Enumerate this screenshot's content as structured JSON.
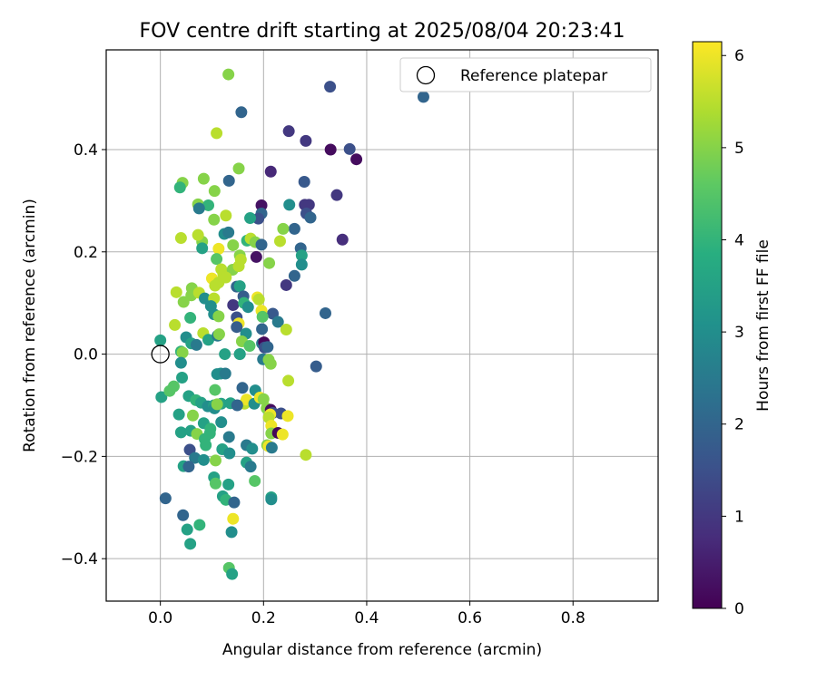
{
  "chart_data": {
    "type": "scatter",
    "title": "FOV centre drift starting at 2025/08/04 20:23:41",
    "xlabel": "Angular distance from reference (arcmin)",
    "ylabel": "Rotation from reference (arcmin)",
    "xlim": [
      -0.105,
      0.965
    ],
    "ylim": [
      -0.483,
      0.595
    ],
    "xticks": [
      0.0,
      0.2,
      0.4,
      0.6,
      0.8
    ],
    "xtick_labels": [
      "0.0",
      "0.2",
      "0.4",
      "0.6",
      "0.8"
    ],
    "yticks": [
      -0.4,
      -0.2,
      0.0,
      0.2,
      0.4
    ],
    "ytick_labels": [
      "−0.4",
      "−0.2",
      "0.0",
      "0.2",
      "0.4"
    ],
    "grid": true,
    "legend": {
      "placement": "top-right",
      "entries": [
        "Reference platepar"
      ]
    },
    "reference_point": {
      "x": 0.0,
      "y": 0.0,
      "name": "Reference platepar"
    },
    "colorbar": {
      "label": "Hours from first FF file",
      "range": [
        0,
        6.15
      ],
      "ticks": [
        0,
        1,
        2,
        3,
        4,
        5,
        6
      ],
      "tick_labels": [
        "0",
        "1",
        "2",
        "3",
        "4",
        "5",
        "6"
      ],
      "colormap": "viridis"
    },
    "points": [
      [
        0.132,
        0.547,
        5.0
      ],
      [
        0.157,
        0.473,
        2.0
      ],
      [
        0.329,
        0.523,
        1.5
      ],
      [
        0.51,
        0.503,
        2.0
      ],
      [
        0.249,
        0.436,
        1.0
      ],
      [
        0.282,
        0.417,
        1.0
      ],
      [
        0.33,
        0.4,
        0.2
      ],
      [
        0.367,
        0.401,
        1.5
      ],
      [
        0.38,
        0.381,
        0.2
      ],
      [
        0.109,
        0.432,
        5.5
      ],
      [
        0.214,
        0.357,
        0.7
      ],
      [
        0.152,
        0.363,
        5.0
      ],
      [
        0.279,
        0.337,
        1.7
      ],
      [
        0.342,
        0.311,
        1.0
      ],
      [
        0.353,
        0.224,
        0.8
      ],
      [
        0.084,
        0.343,
        5.0
      ],
      [
        0.043,
        0.335,
        5.0
      ],
      [
        0.038,
        0.326,
        4.0
      ],
      [
        0.105,
        0.319,
        5.0
      ],
      [
        0.133,
        0.339,
        2.0
      ],
      [
        0.196,
        0.291,
        0.3
      ],
      [
        0.073,
        0.293,
        5.0
      ],
      [
        0.093,
        0.291,
        4.0
      ],
      [
        0.075,
        0.285,
        2.5
      ],
      [
        0.25,
        0.292,
        3.0
      ],
      [
        0.28,
        0.292,
        1.0
      ],
      [
        0.288,
        0.292,
        1.0
      ],
      [
        0.196,
        0.275,
        2.0
      ],
      [
        0.19,
        0.265,
        1.5
      ],
      [
        0.174,
        0.266,
        3.5
      ],
      [
        0.127,
        0.271,
        5.5
      ],
      [
        0.104,
        0.263,
        5.0
      ],
      [
        0.283,
        0.275,
        1.5
      ],
      [
        0.291,
        0.267,
        2.0
      ],
      [
        0.26,
        0.245,
        2.0
      ],
      [
        0.238,
        0.245,
        5.0
      ],
      [
        0.081,
        0.22,
        5.0
      ],
      [
        0.073,
        0.233,
        5.5
      ],
      [
        0.04,
        0.227,
        5.5
      ],
      [
        0.124,
        0.235,
        3.0
      ],
      [
        0.132,
        0.238,
        2.5
      ],
      [
        0.168,
        0.222,
        4.0
      ],
      [
        0.175,
        0.226,
        5.5
      ],
      [
        0.184,
        0.219,
        5.0
      ],
      [
        0.196,
        0.214,
        2.0
      ],
      [
        0.232,
        0.221,
        5.5
      ],
      [
        0.272,
        0.207,
        2.0
      ],
      [
        0.274,
        0.193,
        3.5
      ],
      [
        0.081,
        0.207,
        3.5
      ],
      [
        0.113,
        0.206,
        6.0
      ],
      [
        0.141,
        0.213,
        5.0
      ],
      [
        0.154,
        0.193,
        5.0
      ],
      [
        0.156,
        0.185,
        5.5
      ],
      [
        0.186,
        0.19,
        0.3
      ],
      [
        0.211,
        0.178,
        5.0
      ],
      [
        0.274,
        0.175,
        3.0
      ],
      [
        0.109,
        0.186,
        4.5
      ],
      [
        0.118,
        0.166,
        5.5
      ],
      [
        0.122,
        0.156,
        5.5
      ],
      [
        0.14,
        0.165,
        5.0
      ],
      [
        0.152,
        0.172,
        5.5
      ],
      [
        0.1,
        0.148,
        6.0
      ],
      [
        0.113,
        0.14,
        5.5
      ],
      [
        0.127,
        0.15,
        5.5
      ],
      [
        0.106,
        0.134,
        5.5
      ],
      [
        0.061,
        0.129,
        5.0
      ],
      [
        0.031,
        0.121,
        5.5
      ],
      [
        0.06,
        0.115,
        5.0
      ],
      [
        0.045,
        0.102,
        5.0
      ],
      [
        0.075,
        0.12,
        5.5
      ],
      [
        0.086,
        0.109,
        3.0
      ],
      [
        0.104,
        0.109,
        5.5
      ],
      [
        0.098,
        0.094,
        3.0
      ],
      [
        0.104,
        0.078,
        3.0
      ],
      [
        0.113,
        0.074,
        5.0
      ],
      [
        0.148,
        0.132,
        2.0
      ],
      [
        0.154,
        0.133,
        3.5
      ],
      [
        0.161,
        0.113,
        1.8
      ],
      [
        0.141,
        0.096,
        1.0
      ],
      [
        0.162,
        0.1,
        4.0
      ],
      [
        0.17,
        0.092,
        3.0
      ],
      [
        0.188,
        0.111,
        6.0
      ],
      [
        0.191,
        0.107,
        5.5
      ],
      [
        0.218,
        0.079,
        1.7
      ],
      [
        0.228,
        0.063,
        2.5
      ],
      [
        0.244,
        0.135,
        1.0
      ],
      [
        0.26,
        0.153,
        2.0
      ],
      [
        0.32,
        0.08,
        2.0
      ],
      [
        0.058,
        0.071,
        4.0
      ],
      [
        0.028,
        0.057,
        5.5
      ],
      [
        0.148,
        0.072,
        1.5
      ],
      [
        0.152,
        0.06,
        6.0
      ],
      [
        0.196,
        0.085,
        6.0
      ],
      [
        0.198,
        0.073,
        4.5
      ],
      [
        0.197,
        0.049,
        2.0
      ],
      [
        0.244,
        0.048,
        5.5
      ],
      [
        0.05,
        0.033,
        3.0
      ],
      [
        0.083,
        0.041,
        5.5
      ],
      [
        0.093,
        0.028,
        3.5
      ],
      [
        0.111,
        0.036,
        2.5
      ],
      [
        0.114,
        0.039,
        5.0
      ],
      [
        0.148,
        0.053,
        1.8
      ],
      [
        0.166,
        0.04,
        3.0
      ],
      [
        0.197,
        0.021,
        2.5
      ],
      [
        0.158,
        0.025,
        5.0
      ],
      [
        0.173,
        0.016,
        4.5
      ],
      [
        0.201,
        0.023,
        0.1
      ],
      [
        0.202,
        0.013,
        1.5
      ],
      [
        0.208,
        0.014,
        2.0
      ],
      [
        0.06,
        0.021,
        3.5
      ],
      [
        0.07,
        0.018,
        2.5
      ],
      [
        0.0,
        0.027,
        3.5
      ],
      [
        0.04,
        0.005,
        4.0
      ],
      [
        0.043,
        0.003,
        5.0
      ],
      [
        0.125,
        0.0,
        3.5
      ],
      [
        0.154,
        0.0,
        3.0
      ],
      [
        0.154,
        -0.0,
        3.5
      ],
      [
        0.199,
        -0.01,
        2.5
      ],
      [
        0.21,
        -0.011,
        5.0
      ],
      [
        0.214,
        -0.019,
        5.0
      ],
      [
        0.04,
        -0.017,
        3.0
      ],
      [
        0.11,
        -0.039,
        3.0
      ],
      [
        0.117,
        -0.038,
        3.0
      ],
      [
        0.126,
        -0.038,
        2.5
      ],
      [
        0.302,
        -0.024,
        1.8
      ],
      [
        0.248,
        -0.052,
        5.5
      ],
      [
        0.042,
        -0.046,
        3.5
      ],
      [
        0.002,
        -0.084,
        3.5
      ],
      [
        0.018,
        -0.072,
        4.5
      ],
      [
        0.026,
        -0.063,
        4.5
      ],
      [
        0.106,
        -0.07,
        4.5
      ],
      [
        0.159,
        -0.066,
        2.0
      ],
      [
        0.184,
        -0.071,
        3.0
      ],
      [
        0.055,
        -0.082,
        3.5
      ],
      [
        0.069,
        -0.09,
        4.0
      ],
      [
        0.079,
        -0.095,
        3.5
      ],
      [
        0.092,
        -0.102,
        3.0
      ],
      [
        0.104,
        -0.1,
        3.5
      ],
      [
        0.118,
        -0.097,
        3.5
      ],
      [
        0.136,
        -0.096,
        3.5
      ],
      [
        0.163,
        -0.097,
        5.5
      ],
      [
        0.167,
        -0.089,
        6.0
      ],
      [
        0.182,
        -0.097,
        3.0
      ],
      [
        0.193,
        -0.085,
        6.0
      ],
      [
        0.2,
        -0.088,
        5.0
      ],
      [
        0.105,
        -0.106,
        3.0
      ],
      [
        0.11,
        -0.098,
        5.0
      ],
      [
        0.149,
        -0.1,
        2.0
      ],
      [
        0.206,
        -0.106,
        5.0
      ],
      [
        0.214,
        -0.109,
        0.2
      ],
      [
        0.218,
        -0.115,
        1.5
      ],
      [
        0.234,
        -0.116,
        1.5
      ],
      [
        0.247,
        -0.121,
        6.0
      ],
      [
        0.213,
        -0.118,
        6.0
      ],
      [
        0.21,
        -0.124,
        5.5
      ],
      [
        0.215,
        -0.14,
        6.0
      ],
      [
        0.036,
        -0.118,
        3.5
      ],
      [
        0.063,
        -0.12,
        5.0
      ],
      [
        0.084,
        -0.135,
        3.5
      ],
      [
        0.097,
        -0.146,
        4.0
      ],
      [
        0.118,
        -0.133,
        3.0
      ],
      [
        0.04,
        -0.153,
        3.5
      ],
      [
        0.059,
        -0.15,
        3.5
      ],
      [
        0.071,
        -0.156,
        5.0
      ],
      [
        0.086,
        -0.166,
        4.0
      ],
      [
        0.096,
        -0.155,
        4.0
      ],
      [
        0.215,
        -0.155,
        5.0
      ],
      [
        0.228,
        -0.154,
        0.1
      ],
      [
        0.237,
        -0.157,
        6.0
      ],
      [
        0.088,
        -0.178,
        4.0
      ],
      [
        0.133,
        -0.162,
        2.5
      ],
      [
        0.057,
        -0.187,
        1.5
      ],
      [
        0.12,
        -0.186,
        3.5
      ],
      [
        0.134,
        -0.194,
        3.0
      ],
      [
        0.167,
        -0.178,
        2.5
      ],
      [
        0.178,
        -0.185,
        3.0
      ],
      [
        0.207,
        -0.178,
        5.0
      ],
      [
        0.21,
        -0.18,
        6.0
      ],
      [
        0.216,
        -0.183,
        2.5
      ],
      [
        0.282,
        -0.197,
        5.5
      ],
      [
        0.067,
        -0.203,
        2.5
      ],
      [
        0.084,
        -0.207,
        3.0
      ],
      [
        0.107,
        -0.208,
        5.0
      ],
      [
        0.167,
        -0.212,
        3.5
      ],
      [
        0.175,
        -0.22,
        2.5
      ],
      [
        0.045,
        -0.219,
        3.5
      ],
      [
        0.055,
        -0.22,
        2.0
      ],
      [
        0.104,
        -0.241,
        3.5
      ],
      [
        0.107,
        -0.253,
        4.5
      ],
      [
        0.132,
        -0.255,
        3.5
      ],
      [
        0.183,
        -0.248,
        4.5
      ],
      [
        0.01,
        -0.282,
        2.0
      ],
      [
        0.121,
        -0.278,
        3.5
      ],
      [
        0.127,
        -0.285,
        4.0
      ],
      [
        0.143,
        -0.29,
        2.0
      ],
      [
        0.215,
        -0.28,
        3.5
      ],
      [
        0.215,
        -0.284,
        3.0
      ],
      [
        0.044,
        -0.315,
        2.0
      ],
      [
        0.141,
        -0.322,
        6.0
      ],
      [
        0.052,
        -0.343,
        3.5
      ],
      [
        0.076,
        -0.334,
        4.0
      ],
      [
        0.138,
        -0.348,
        3.0
      ],
      [
        0.058,
        -0.371,
        3.5
      ],
      [
        0.133,
        -0.418,
        4.5
      ],
      [
        0.139,
        -0.43,
        3.5
      ]
    ]
  }
}
